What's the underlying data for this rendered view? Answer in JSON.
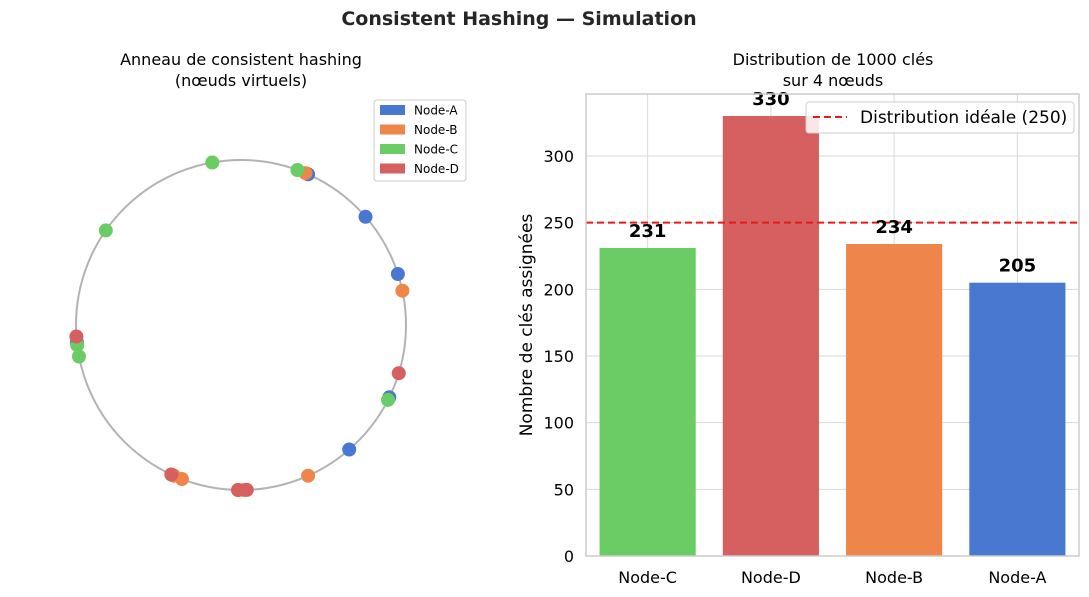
{
  "figure_title": "Consistent Hashing — Simulation",
  "colors": {
    "Node-A": "#4878d0",
    "Node-B": "#ee854a",
    "Node-C": "#6acc64",
    "Node-D": "#d65f5f",
    "ideal_line": "#e41a1c",
    "ring": "#b3b3b3",
    "grid": "#d9d9d9",
    "spine": "#cccccc"
  },
  "chart_data": [
    {
      "type": "scatter",
      "title_lines": [
        "Anneau de consistent hashing",
        "(nœuds virtuels)"
      ],
      "legend": [
        "Node-A",
        "Node-B",
        "Node-C",
        "Node-D"
      ],
      "legend_position": "top-right",
      "ring": "circle",
      "virtual_nodes_angles_deg": [
        {
          "node": "Node-A",
          "angles": [
            66,
            41,
            -26,
            -49,
            18,
            -174
          ]
        },
        {
          "node": "Node-B",
          "angles": [
            67,
            12,
            -111,
            -114,
            -66,
            -89
          ]
        },
        {
          "node": "Node-C",
          "angles": [
            100,
            145,
            70,
            -27,
            -173,
            -169
          ]
        },
        {
          "node": "Node-D",
          "angles": [
            184,
            -17,
            -115,
            -88,
            -91,
            -91
          ]
        }
      ]
    },
    {
      "type": "bar",
      "title_lines": [
        "Distribution de 1000 clés",
        "sur 4 nœuds"
      ],
      "categories": [
        "Node-C",
        "Node-D",
        "Node-B",
        "Node-A"
      ],
      "values": [
        231,
        330,
        234,
        205
      ],
      "value_labels": [
        "231",
        "330",
        "234",
        "205"
      ],
      "ylabel": "Nombre de clés assignées",
      "xlabel": "",
      "ylim": [
        0,
        346.5
      ],
      "yticks": [
        0,
        50,
        100,
        150,
        200,
        250,
        300
      ],
      "ideal_value": 250,
      "legend": [
        "Distribution idéale (250)"
      ],
      "legend_position": "top-right",
      "grid": true
    }
  ]
}
